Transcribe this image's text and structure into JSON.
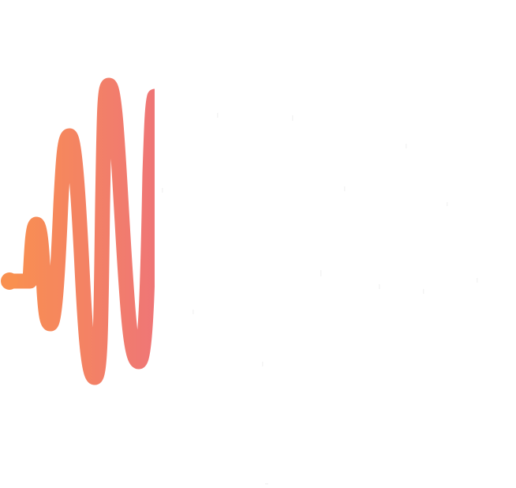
{
  "logo": {
    "icon": "sound-wave-icon",
    "gradient_start": "#F99050",
    "gradient_end": "#EF7676"
  },
  "background_color": "#FFFFFF"
}
